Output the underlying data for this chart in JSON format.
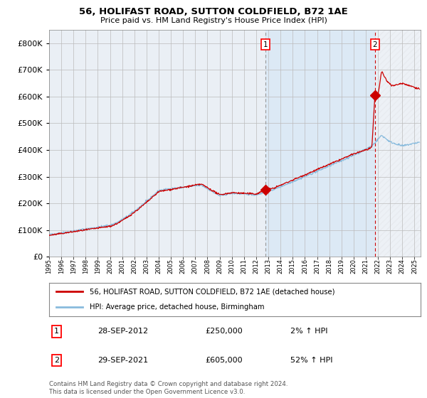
{
  "title": "56, HOLIFAST ROAD, SUTTON COLDFIELD, B72 1AE",
  "subtitle": "Price paid vs. HM Land Registry's House Price Index (HPI)",
  "legend_line1": "56, HOLIFAST ROAD, SUTTON COLDFIELD, B72 1AE (detached house)",
  "legend_line2": "HPI: Average price, detached house, Birmingham",
  "transaction1_date": "28-SEP-2012",
  "transaction1_price": "£250,000",
  "transaction1_hpi": "2% ↑ HPI",
  "transaction1_year": 2012.75,
  "transaction2_date": "29-SEP-2021",
  "transaction2_price": "£605,000",
  "transaction2_hpi": "52% ↑ HPI",
  "transaction2_year": 2021.75,
  "footer": "Contains HM Land Registry data © Crown copyright and database right 2024.\nThis data is licensed under the Open Government Licence v3.0.",
  "hpi_color": "#89BBDD",
  "price_color": "#CC0000",
  "span_color": "#DCE9F5",
  "plot_bg": "#EAEFF5",
  "grid_color": "#BBBBBB",
  "ylim": [
    0,
    850000
  ],
  "xlim_start": 1995.0,
  "xlim_end": 2025.5,
  "yticks": [
    0,
    100000,
    200000,
    300000,
    400000,
    500000,
    600000,
    700000,
    800000
  ]
}
